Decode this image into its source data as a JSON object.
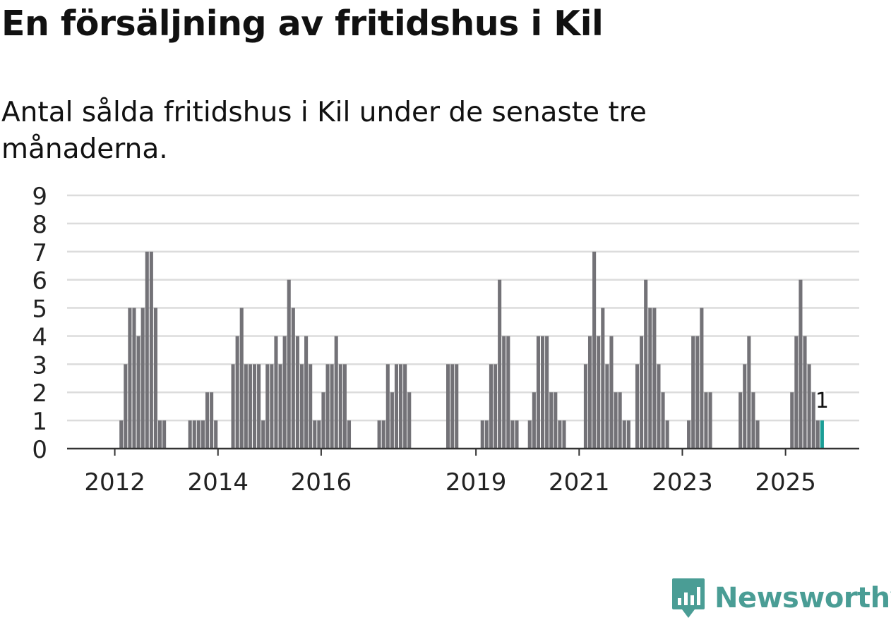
{
  "header": {
    "title": "En försäljning av fritidshus i Kil",
    "subtitle": "Antal sålda fritidshus i Kil under de senaste tre månaderna."
  },
  "chart_data": {
    "type": "bar",
    "title": "En försäljning av fritidshus i Kil",
    "subtitle": "Antal sålda fritidshus i Kil under de senaste tre månaderna.",
    "xlabel": "",
    "ylabel": "",
    "ylim": [
      0,
      9
    ],
    "yticks": [
      "0",
      "1",
      "2",
      "3",
      "4",
      "5",
      "6",
      "7",
      "8",
      "9"
    ],
    "grid": true,
    "x_start": "2011-01",
    "xticks": [
      {
        "label": "2012",
        "month": "2012-01"
      },
      {
        "label": "2014",
        "month": "2014-01"
      },
      {
        "label": "2016",
        "month": "2016-01"
      },
      {
        "label": "2019",
        "month": "2019-01"
      },
      {
        "label": "2021",
        "month": "2021-01"
      },
      {
        "label": "2023",
        "month": "2023-01"
      },
      {
        "label": "2025",
        "month": "2025-01"
      }
    ],
    "values": [
      0,
      0,
      0,
      0,
      0,
      0,
      0,
      0,
      0,
      0,
      0,
      0,
      0,
      1,
      3,
      5,
      5,
      4,
      5,
      7,
      7,
      5,
      1,
      1,
      0,
      0,
      0,
      0,
      0,
      1,
      1,
      1,
      1,
      2,
      2,
      1,
      0,
      0,
      0,
      3,
      4,
      5,
      3,
      3,
      3,
      3,
      1,
      3,
      3,
      4,
      3,
      4,
      6,
      5,
      4,
      3,
      4,
      3,
      1,
      1,
      2,
      3,
      3,
      4,
      3,
      3,
      1,
      0,
      0,
      0,
      0,
      0,
      0,
      1,
      1,
      3,
      2,
      3,
      3,
      3,
      2,
      0,
      0,
      0,
      0,
      0,
      0,
      0,
      0,
      3,
      3,
      3,
      0,
      0,
      0,
      0,
      0,
      1,
      1,
      3,
      3,
      6,
      4,
      4,
      1,
      1,
      0,
      0,
      1,
      2,
      4,
      4,
      4,
      2,
      2,
      1,
      1,
      0,
      0,
      0,
      0,
      3,
      4,
      7,
      4,
      5,
      3,
      4,
      2,
      2,
      1,
      1,
      0,
      3,
      4,
      6,
      5,
      5,
      3,
      2,
      1,
      0,
      0,
      0,
      0,
      1,
      4,
      4,
      5,
      2,
      2,
      0,
      0,
      0,
      0,
      0,
      0,
      2,
      3,
      4,
      2,
      1,
      0,
      0,
      0,
      0,
      0,
      0,
      0,
      2,
      4,
      6,
      4,
      3,
      2,
      1,
      1
    ],
    "bar_color": "#737277",
    "highlight_color": "#1a9e96",
    "highlight_label": "1",
    "gridline_color": "#dcdcdc"
  },
  "branding": {
    "logo_text": "Newsworthy",
    "logo_color": "#4a9d95",
    "logo_icon": "bar-chart-badge-icon"
  }
}
